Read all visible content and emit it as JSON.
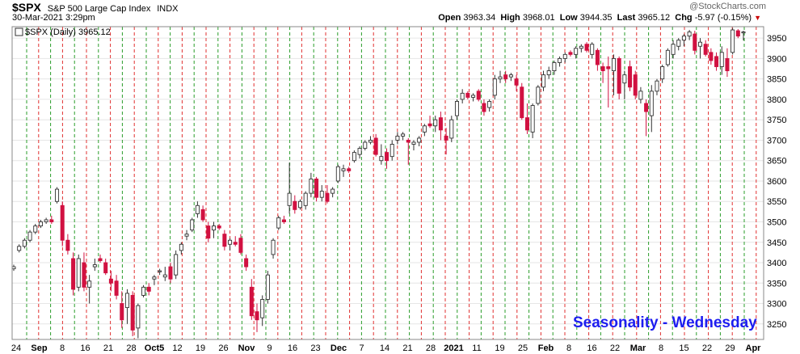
{
  "header": {
    "symbol": "$SPX",
    "name": "S&P 500 Large Cap Index",
    "exchange": "INDX",
    "datetime": "30-Mar-2021 3:29pm",
    "open_label": "Open",
    "open": "3963.34",
    "high_label": "High",
    "high": "3968.01",
    "low_label": "Low",
    "low": "3944.35",
    "last_label": "Last",
    "last": "3965.12",
    "chg_label": "Chg",
    "chg": "-5.97 (-0.15%)",
    "watermark": "@StockCharts.com",
    "legend": "$SPX (Daily) 3965.12"
  },
  "annotation": "Seasonality - Wednesday",
  "chart_data": {
    "type": "candlestick",
    "x_labels": [
      "24",
      "Sep",
      "8",
      "16",
      "21",
      "28",
      "Oct5",
      "12",
      "19",
      "26",
      "Nov",
      "9",
      "16",
      "23",
      "Dec",
      "7",
      "14",
      "21",
      "28",
      "2021",
      "11",
      "19",
      "25",
      "Feb",
      "8",
      "16",
      "22",
      "Mar",
      "8",
      "15",
      "22",
      "29",
      "Apr"
    ],
    "y_ticks": [
      3250,
      3300,
      3350,
      3400,
      3450,
      3500,
      3550,
      3600,
      3650,
      3700,
      3750,
      3800,
      3850,
      3900,
      3950
    ],
    "ylim": [
      3212,
      3978
    ],
    "vertical_gridlines": "green dashed = Wednesday, red dashed = alternating day marker",
    "colors": {
      "up": "#ffffff",
      "down": "#d11141",
      "grid_green": "#2a9d2a",
      "grid_red": "#e03030",
      "seasonality": "#1d1df0"
    },
    "candles": [
      {
        "o": 3385,
        "h": 3395,
        "l": 3380,
        "c": 3390
      },
      {
        "o": 3430,
        "h": 3445,
        "l": 3425,
        "c": 3440
      },
      {
        "o": 3440,
        "h": 3460,
        "l": 3435,
        "c": 3455
      },
      {
        "o": 3455,
        "h": 3480,
        "l": 3450,
        "c": 3475
      },
      {
        "o": 3475,
        "h": 3495,
        "l": 3470,
        "c": 3490
      },
      {
        "o": 3490,
        "h": 3505,
        "l": 3485,
        "c": 3500
      },
      {
        "o": 3500,
        "h": 3510,
        "l": 3495,
        "c": 3505
      },
      {
        "o": 3505,
        "h": 3515,
        "l": 3495,
        "c": 3500
      },
      {
        "o": 3550,
        "h": 3585,
        "l": 3545,
        "c": 3580
      },
      {
        "o": 3540,
        "h": 3550,
        "l": 3440,
        "c": 3455
      },
      {
        "o": 3455,
        "h": 3470,
        "l": 3420,
        "c": 3430
      },
      {
        "o": 3410,
        "h": 3425,
        "l": 3320,
        "c": 3335
      },
      {
        "o": 3340,
        "h": 3420,
        "l": 3330,
        "c": 3410
      },
      {
        "o": 3400,
        "h": 3425,
        "l": 3330,
        "c": 3340
      },
      {
        "o": 3340,
        "h": 3370,
        "l": 3300,
        "c": 3355
      },
      {
        "o": 3390,
        "h": 3410,
        "l": 3380,
        "c": 3395
      },
      {
        "o": 3410,
        "h": 3420,
        "l": 3400,
        "c": 3405
      },
      {
        "o": 3400,
        "h": 3410,
        "l": 3370,
        "c": 3375
      },
      {
        "o": 3360,
        "h": 3380,
        "l": 3330,
        "c": 3350
      },
      {
        "o": 3355,
        "h": 3370,
        "l": 3310,
        "c": 3320
      },
      {
        "o": 3300,
        "h": 3330,
        "l": 3240,
        "c": 3260
      },
      {
        "o": 3290,
        "h": 3335,
        "l": 3250,
        "c": 3325
      },
      {
        "o": 3320,
        "h": 3330,
        "l": 3220,
        "c": 3235
      },
      {
        "o": 3240,
        "h": 3300,
        "l": 3215,
        "c": 3295
      },
      {
        "o": 3320,
        "h": 3345,
        "l": 3315,
        "c": 3340
      },
      {
        "o": 3340,
        "h": 3350,
        "l": 3320,
        "c": 3330
      },
      {
        "o": 3360,
        "h": 3370,
        "l": 3345,
        "c": 3365
      },
      {
        "o": 3380,
        "h": 3385,
        "l": 3370,
        "c": 3380
      },
      {
        "o": 3365,
        "h": 3390,
        "l": 3355,
        "c": 3370
      },
      {
        "o": 3390,
        "h": 3400,
        "l": 3350,
        "c": 3360
      },
      {
        "o": 3370,
        "h": 3430,
        "l": 3360,
        "c": 3420
      },
      {
        "o": 3430,
        "h": 3450,
        "l": 3420,
        "c": 3445
      },
      {
        "o": 3465,
        "h": 3480,
        "l": 3455,
        "c": 3470
      },
      {
        "o": 3480,
        "h": 3510,
        "l": 3475,
        "c": 3505
      },
      {
        "o": 3520,
        "h": 3550,
        "l": 3510,
        "c": 3540
      },
      {
        "o": 3530,
        "h": 3540,
        "l": 3500,
        "c": 3505
      },
      {
        "o": 3490,
        "h": 3500,
        "l": 3450,
        "c": 3460
      },
      {
        "o": 3480,
        "h": 3500,
        "l": 3460,
        "c": 3490
      },
      {
        "o": 3490,
        "h": 3495,
        "l": 3480,
        "c": 3485
      },
      {
        "o": 3470,
        "h": 3480,
        "l": 3430,
        "c": 3440
      },
      {
        "o": 3445,
        "h": 3460,
        "l": 3430,
        "c": 3455
      },
      {
        "o": 3450,
        "h": 3465,
        "l": 3440,
        "c": 3445
      },
      {
        "o": 3460,
        "h": 3470,
        "l": 3420,
        "c": 3425
      },
      {
        "o": 3410,
        "h": 3420,
        "l": 3380,
        "c": 3390
      },
      {
        "o": 3340,
        "h": 3360,
        "l": 3260,
        "c": 3270
      },
      {
        "o": 3280,
        "h": 3300,
        "l": 3230,
        "c": 3260
      },
      {
        "o": 3265,
        "h": 3320,
        "l": 3245,
        "c": 3310
      },
      {
        "o": 3310,
        "h": 3380,
        "l": 3300,
        "c": 3370
      },
      {
        "o": 3420,
        "h": 3460,
        "l": 3410,
        "c": 3455
      },
      {
        "o": 3485,
        "h": 3515,
        "l": 3480,
        "c": 3510
      },
      {
        "o": 3505,
        "h": 3515,
        "l": 3495,
        "c": 3500
      },
      {
        "o": 3540,
        "h": 3645,
        "l": 3520,
        "c": 3570
      },
      {
        "o": 3550,
        "h": 3565,
        "l": 3520,
        "c": 3530
      },
      {
        "o": 3535,
        "h": 3555,
        "l": 3530,
        "c": 3550
      },
      {
        "o": 3540,
        "h": 3575,
        "l": 3530,
        "c": 3570
      },
      {
        "o": 3570,
        "h": 3620,
        "l": 3560,
        "c": 3605
      },
      {
        "o": 3605,
        "h": 3610,
        "l": 3550,
        "c": 3560
      },
      {
        "o": 3560,
        "h": 3590,
        "l": 3550,
        "c": 3575
      },
      {
        "o": 3570,
        "h": 3590,
        "l": 3545,
        "c": 3550
      },
      {
        "o": 3570,
        "h": 3585,
        "l": 3560,
        "c": 3580
      },
      {
        "o": 3600,
        "h": 3640,
        "l": 3595,
        "c": 3635
      },
      {
        "o": 3625,
        "h": 3640,
        "l": 3610,
        "c": 3630
      },
      {
        "o": 3630,
        "h": 3635,
        "l": 3620,
        "c": 3625
      },
      {
        "o": 3650,
        "h": 3675,
        "l": 3645,
        "c": 3670
      },
      {
        "o": 3665,
        "h": 3685,
        "l": 3655,
        "c": 3680
      },
      {
        "o": 3680,
        "h": 3700,
        "l": 3675,
        "c": 3695
      },
      {
        "o": 3695,
        "h": 3710,
        "l": 3690,
        "c": 3700
      },
      {
        "o": 3705,
        "h": 3715,
        "l": 3660,
        "c": 3665
      },
      {
        "o": 3650,
        "h": 3690,
        "l": 3640,
        "c": 3660
      },
      {
        "o": 3670,
        "h": 3680,
        "l": 3630,
        "c": 3650
      },
      {
        "o": 3660,
        "h": 3700,
        "l": 3650,
        "c": 3690
      },
      {
        "o": 3700,
        "h": 3720,
        "l": 3690,
        "c": 3710
      },
      {
        "o": 3710,
        "h": 3720,
        "l": 3700,
        "c": 3715
      },
      {
        "o": 3700,
        "h": 3705,
        "l": 3640,
        "c": 3695
      },
      {
        "o": 3690,
        "h": 3700,
        "l": 3675,
        "c": 3695
      },
      {
        "o": 3695,
        "h": 3710,
        "l": 3685,
        "c": 3705
      },
      {
        "o": 3720,
        "h": 3740,
        "l": 3710,
        "c": 3735
      },
      {
        "o": 3740,
        "h": 3760,
        "l": 3730,
        "c": 3735
      },
      {
        "o": 3735,
        "h": 3760,
        "l": 3720,
        "c": 3750
      },
      {
        "o": 3755,
        "h": 3770,
        "l": 3700,
        "c": 3725
      },
      {
        "o": 3710,
        "h": 3730,
        "l": 3665,
        "c": 3700
      },
      {
        "o": 3705,
        "h": 3760,
        "l": 3695,
        "c": 3750
      },
      {
        "o": 3760,
        "h": 3800,
        "l": 3750,
        "c": 3795
      },
      {
        "o": 3800,
        "h": 3825,
        "l": 3790,
        "c": 3815
      },
      {
        "o": 3815,
        "h": 3820,
        "l": 3800,
        "c": 3805
      },
      {
        "o": 3805,
        "h": 3815,
        "l": 3795,
        "c": 3810
      },
      {
        "o": 3820,
        "h": 3825,
        "l": 3795,
        "c": 3800
      },
      {
        "o": 3790,
        "h": 3800,
        "l": 3760,
        "c": 3770
      },
      {
        "o": 3780,
        "h": 3800,
        "l": 3770,
        "c": 3795
      },
      {
        "o": 3810,
        "h": 3860,
        "l": 3800,
        "c": 3850
      },
      {
        "o": 3850,
        "h": 3870,
        "l": 3840,
        "c": 3855
      },
      {
        "o": 3860,
        "h": 3870,
        "l": 3840,
        "c": 3850
      },
      {
        "o": 3855,
        "h": 3865,
        "l": 3845,
        "c": 3860
      },
      {
        "o": 3850,
        "h": 3860,
        "l": 3820,
        "c": 3835
      },
      {
        "o": 3830,
        "h": 3840,
        "l": 3750,
        "c": 3755
      },
      {
        "o": 3755,
        "h": 3790,
        "l": 3715,
        "c": 3725
      },
      {
        "o": 3720,
        "h": 3790,
        "l": 3705,
        "c": 3785
      },
      {
        "o": 3790,
        "h": 3835,
        "l": 3785,
        "c": 3830
      },
      {
        "o": 3830,
        "h": 3870,
        "l": 3820,
        "c": 3860
      },
      {
        "o": 3860,
        "h": 3880,
        "l": 3850,
        "c": 3870
      },
      {
        "o": 3870,
        "h": 3895,
        "l": 3860,
        "c": 3890
      },
      {
        "o": 3890,
        "h": 3905,
        "l": 3880,
        "c": 3900
      },
      {
        "o": 3900,
        "h": 3915,
        "l": 3890,
        "c": 3910
      },
      {
        "o": 3915,
        "h": 3920,
        "l": 3905,
        "c": 3910
      },
      {
        "o": 3910,
        "h": 3930,
        "l": 3900,
        "c": 3925
      },
      {
        "o": 3925,
        "h": 3935,
        "l": 3915,
        "c": 3930
      },
      {
        "o": 3935,
        "h": 3940,
        "l": 3915,
        "c": 3920
      },
      {
        "o": 3910,
        "h": 3940,
        "l": 3900,
        "c": 3935
      },
      {
        "o": 3920,
        "h": 3925,
        "l": 3870,
        "c": 3885
      },
      {
        "o": 3880,
        "h": 3890,
        "l": 3840,
        "c": 3870
      },
      {
        "o": 3880,
        "h": 3905,
        "l": 3780,
        "c": 3875
      },
      {
        "o": 3870,
        "h": 3910,
        "l": 3810,
        "c": 3900
      },
      {
        "o": 3900,
        "h": 3905,
        "l": 3800,
        "c": 3815
      },
      {
        "o": 3840,
        "h": 3870,
        "l": 3800,
        "c": 3860
      },
      {
        "o": 3880,
        "h": 3895,
        "l": 3820,
        "c": 3830
      },
      {
        "o": 3860,
        "h": 3870,
        "l": 3800,
        "c": 3810
      },
      {
        "o": 3800,
        "h": 3830,
        "l": 3790,
        "c": 3820
      },
      {
        "o": 3790,
        "h": 3800,
        "l": 3710,
        "c": 3770
      },
      {
        "o": 3760,
        "h": 3835,
        "l": 3720,
        "c": 3820
      },
      {
        "o": 3820,
        "h": 3850,
        "l": 3810,
        "c": 3845
      },
      {
        "o": 3850,
        "h": 3885,
        "l": 3840,
        "c": 3880
      },
      {
        "o": 3885,
        "h": 3925,
        "l": 3880,
        "c": 3920
      },
      {
        "o": 3910,
        "h": 3945,
        "l": 3900,
        "c": 3935
      },
      {
        "o": 3930,
        "h": 3950,
        "l": 3920,
        "c": 3945
      },
      {
        "o": 3945,
        "h": 3960,
        "l": 3930,
        "c": 3955
      },
      {
        "o": 3955,
        "h": 3970,
        "l": 3945,
        "c": 3965
      },
      {
        "o": 3960,
        "h": 3968,
        "l": 3910,
        "c": 3920
      },
      {
        "o": 3930,
        "h": 3950,
        "l": 3900,
        "c": 3940
      },
      {
        "o": 3935,
        "h": 3945,
        "l": 3905,
        "c": 3910
      },
      {
        "o": 3915,
        "h": 3925,
        "l": 3885,
        "c": 3895
      },
      {
        "o": 3905,
        "h": 3915,
        "l": 3870,
        "c": 3880
      },
      {
        "o": 3880,
        "h": 3930,
        "l": 3860,
        "c": 3915
      },
      {
        "o": 3900,
        "h": 3925,
        "l": 3855,
        "c": 3870
      },
      {
        "o": 3915,
        "h": 3975,
        "l": 3910,
        "c": 3970
      },
      {
        "o": 3968,
        "h": 3972,
        "l": 3950,
        "c": 3955
      },
      {
        "o": 3963.34,
        "h": 3968.01,
        "l": 3944.35,
        "c": 3965.12
      }
    ]
  }
}
